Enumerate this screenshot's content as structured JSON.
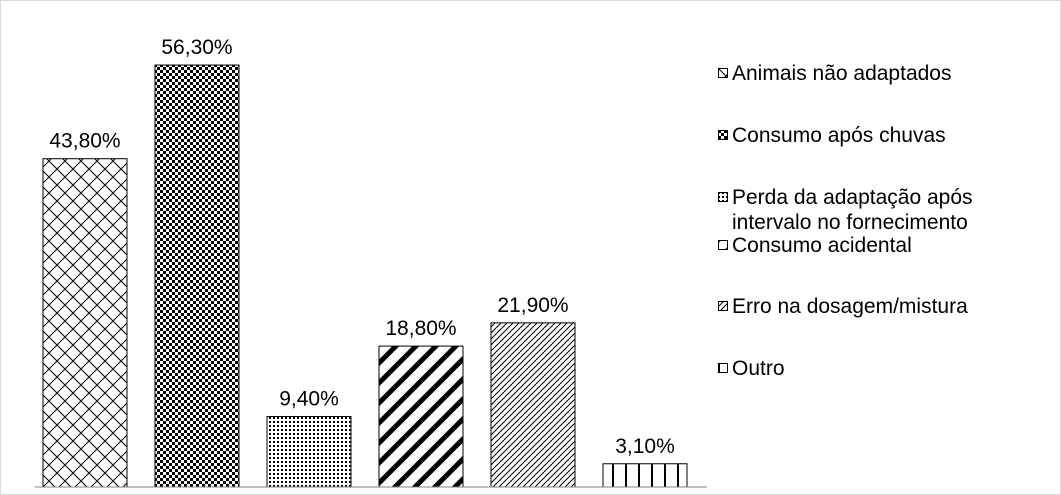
{
  "chart_data": {
    "type": "bar",
    "title": "",
    "xlabel": "",
    "ylabel": "",
    "ylim": [
      0,
      60
    ],
    "grid": false,
    "legend_position": "right",
    "categories": [
      "Animais não adaptados",
      "Consumo após chuvas",
      "Perda da adaptação após\nintervalo no fornecimento",
      "Consumo acidental",
      "Erro na dosagem/mistura",
      "Outro"
    ],
    "values": [
      43.8,
      56.3,
      9.4,
      18.8,
      21.9,
      3.1
    ],
    "data_labels": [
      "43,80%",
      "56,30%",
      "9,40%",
      "18,80%",
      "21,90%",
      "3,10%"
    ],
    "patterns": [
      "crosshatch",
      "checker",
      "dots",
      "wide-diagonal",
      "fine-diagonal",
      "vertical-grid"
    ]
  },
  "colors": {
    "stroke": "#000000",
    "axis": "#808080",
    "border": "#d9d9d9",
    "background": "#ffffff"
  }
}
